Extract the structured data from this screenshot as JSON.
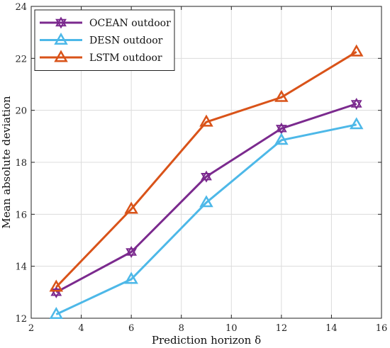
{
  "chart_data": {
    "type": "line",
    "title": "",
    "xlabel": "Prediction horizon δ",
    "ylabel": "Mean absolute deviation",
    "xlim": [
      2,
      16
    ],
    "ylim": [
      12,
      24
    ],
    "xticks": [
      2,
      4,
      6,
      8,
      10,
      12,
      14,
      16
    ],
    "yticks": [
      12,
      14,
      16,
      18,
      20,
      22,
      24
    ],
    "grid": true,
    "legend_position": "top-left",
    "x": [
      3,
      6,
      9,
      12,
      15
    ],
    "series": [
      {
        "name": "OCEAN outdoor",
        "color": "#7b2a8e",
        "marker": "hexagram",
        "values": [
          13.0,
          14.55,
          17.45,
          19.3,
          20.25
        ]
      },
      {
        "name": "DESN outdoor",
        "color": "#4db8e8",
        "marker": "triangle",
        "values": [
          12.15,
          13.5,
          16.45,
          18.85,
          19.45
        ]
      },
      {
        "name": "LSTM outdoor",
        "color": "#d95319",
        "marker": "triangle",
        "values": [
          13.2,
          16.2,
          19.55,
          20.5,
          22.25
        ]
      }
    ]
  }
}
